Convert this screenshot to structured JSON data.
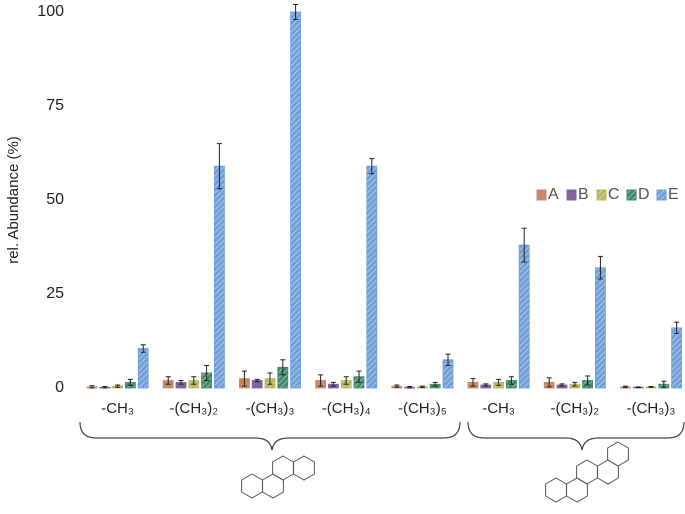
{
  "chart_data": {
    "type": "bar",
    "y_label": "rel. Abundance (%)",
    "categories": [
      "-CH₃",
      "-(CH₃)₂",
      "-(CH₃)₃",
      "-(CH₃)₄",
      "-(CH₃)₅",
      "-CH₃",
      "-(CH₃)₂",
      "-(CH₃)₃"
    ],
    "series": [
      {
        "name": "A",
        "color": "#c8896a",
        "hatch": false,
        "values": [
          0.3,
          2,
          2.5,
          2,
          0.5,
          1.5,
          1.5,
          0.3
        ],
        "errors": [
          0.3,
          1,
          2,
          1.5,
          0.3,
          1,
          1.2,
          0.2
        ]
      },
      {
        "name": "B",
        "color": "#8064a2",
        "hatch": false,
        "values": [
          0.2,
          1.5,
          2,
          1,
          0.2,
          0.8,
          0.8,
          0.2
        ],
        "errors": [
          0.2,
          0.5,
          0.3,
          0.5,
          0.2,
          0.3,
          0.3,
          0.1
        ]
      },
      {
        "name": "C",
        "color": "#b8b85a",
        "hatch": true,
        "values": [
          0.5,
          2,
          2.5,
          2,
          0.3,
          1.5,
          1,
          0.3
        ],
        "errors": [
          0.3,
          1,
          1.5,
          1,
          0.2,
          0.8,
          0.5,
          0.1
        ]
      },
      {
        "name": "D",
        "color": "#3f8a6c",
        "hatch": true,
        "values": [
          1.5,
          4,
          5.5,
          3,
          1,
          2,
          2,
          1
        ],
        "errors": [
          0.8,
          2,
          2,
          1.5,
          0.5,
          1,
          1.2,
          0.8
        ]
      },
      {
        "name": "E",
        "color": "#6f9fd8",
        "hatch": true,
        "values": [
          10.5,
          59,
          100,
          59,
          7.5,
          38,
          32,
          16
        ],
        "errors": [
          1,
          6,
          2,
          2,
          1.5,
          4.5,
          3,
          1.5
        ]
      }
    ],
    "ylim": [
      0,
      100
    ],
    "yticks": [
      0,
      25,
      50,
      75,
      100
    ],
    "grid": false,
    "legend": "right"
  }
}
